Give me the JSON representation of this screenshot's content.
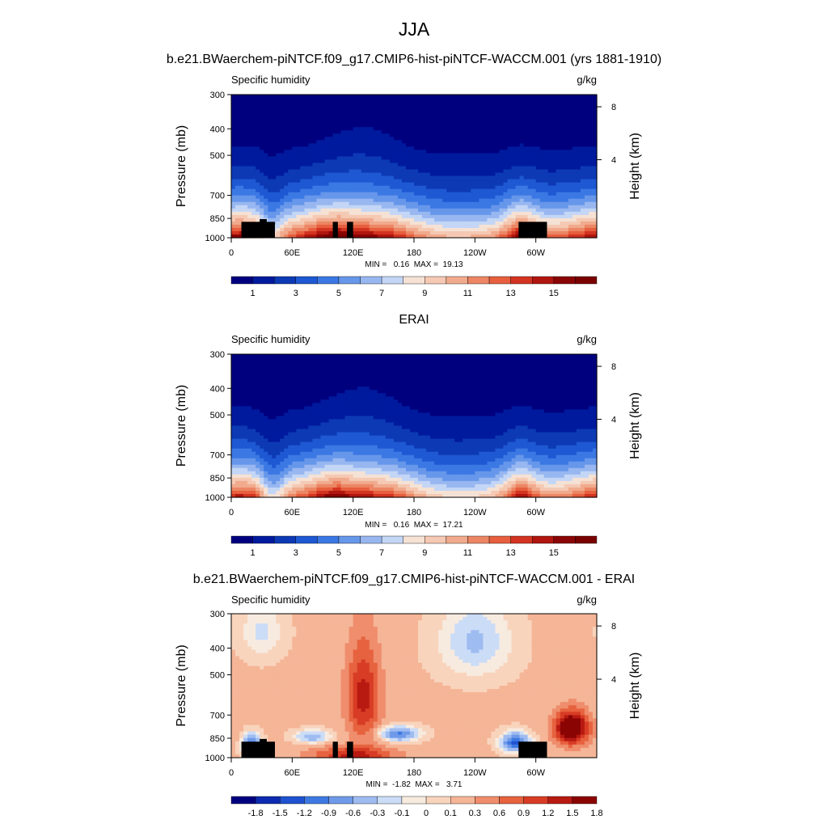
{
  "figure": {
    "main_title": "JJA"
  },
  "palettes": {
    "absolute": [
      "#00007f",
      "#001a9e",
      "#0d3ab4",
      "#1e58d2",
      "#3b78e4",
      "#6797ea",
      "#98b7f0",
      "#c4d6f6",
      "#f5e2d5",
      "#f5c9b3",
      "#f1aa8d",
      "#ec8664",
      "#e75f3e",
      "#d33421",
      "#b0160f",
      "#8a0505",
      "#7a0000"
    ],
    "difference": [
      "#00007f",
      "#0d2bb0",
      "#1f52d0",
      "#3e79e2",
      "#6f9ae9",
      "#9fbcf1",
      "#cbdcf7",
      "#f7ebe0",
      "#f9d4bd",
      "#f5b597",
      "#ef8d6c",
      "#e7623f",
      "#d83c25",
      "#b81a12",
      "#8b0404"
    ]
  },
  "shared": {
    "left_string": "Specific humidity",
    "right_string": "g/kg",
    "ylabel": "Pressure (mb)",
    "right_label": "Height (km)"
  },
  "chart_data": [
    {
      "type": "heatmap",
      "title": "b.e21.BWaerchem-piNTCF.f09_g17.CMIP6-hist-piNTCF-WACCM.001 (yrs 1881-1910)",
      "variable": "Specific humidity",
      "units": "g/kg",
      "xlabel": "",
      "ylabel": "Pressure (mb)",
      "right_axis_label": "Height (km)",
      "x_ticks": [
        "0",
        "60E",
        "120E",
        "180",
        "120W",
        "60W"
      ],
      "x_tick_degrees": [
        0,
        60,
        120,
        180,
        240,
        300
      ],
      "xlim": [
        0,
        360
      ],
      "y_ticks": [
        300,
        400,
        500,
        700,
        850,
        1000
      ],
      "ylim": [
        300,
        1000
      ],
      "y_scale": "log",
      "right_ticks": [
        "8",
        "4"
      ],
      "stats": "MIN =   0.16  MAX =  19.13",
      "min": 0.16,
      "max": 19.13,
      "colorbar_labels": [
        "1",
        "3",
        "5",
        "7",
        "9",
        "11",
        "13",
        "15"
      ],
      "palette": "absolute",
      "terrain_mask": true
    },
    {
      "type": "heatmap",
      "title": "ERAI",
      "variable": "Specific humidity",
      "units": "g/kg",
      "xlabel": "",
      "ylabel": "Pressure (mb)",
      "right_axis_label": "Height (km)",
      "x_ticks": [
        "0",
        "60E",
        "120E",
        "180",
        "120W",
        "60W"
      ],
      "x_tick_degrees": [
        0,
        60,
        120,
        180,
        240,
        300
      ],
      "xlim": [
        0,
        360
      ],
      "y_ticks": [
        300,
        400,
        500,
        700,
        850,
        1000
      ],
      "ylim": [
        300,
        1000
      ],
      "y_scale": "log",
      "right_ticks": [
        "8",
        "4"
      ],
      "stats": "MIN =   0.16  MAX =  17.21",
      "min": 0.16,
      "max": 17.21,
      "colorbar_labels": [
        "1",
        "3",
        "5",
        "7",
        "9",
        "11",
        "13",
        "15"
      ],
      "palette": "absolute",
      "terrain_mask": false
    },
    {
      "type": "heatmap",
      "title": "b.e21.BWaerchem-piNTCF.f09_g17.CMIP6-hist-piNTCF-WACCM.001 - ERAI",
      "variable": "Specific humidity",
      "units": "g/kg",
      "xlabel": "",
      "ylabel": "Pressure (mb)",
      "right_axis_label": "Height (km)",
      "x_ticks": [
        "0",
        "60E",
        "120E",
        "180",
        "120W",
        "60W"
      ],
      "x_tick_degrees": [
        0,
        60,
        120,
        180,
        240,
        300
      ],
      "xlim": [
        0,
        360
      ],
      "y_ticks": [
        300,
        400,
        500,
        700,
        850,
        1000
      ],
      "ylim": [
        300,
        1000
      ],
      "y_scale": "log",
      "right_ticks": [
        "8",
        "4"
      ],
      "stats": "MIN =  -1.82  MAX =   3.71",
      "min": -1.82,
      "max": 3.71,
      "colorbar_labels": [
        "-1.8",
        "-1.5",
        "-1.2",
        "-0.9",
        "-0.6",
        "-0.3",
        "-0.1",
        "0",
        "0.1",
        "0.3",
        "0.6",
        "0.9",
        "1.2",
        "1.5",
        "1.8"
      ],
      "palette": "difference",
      "terrain_mask": true
    }
  ]
}
